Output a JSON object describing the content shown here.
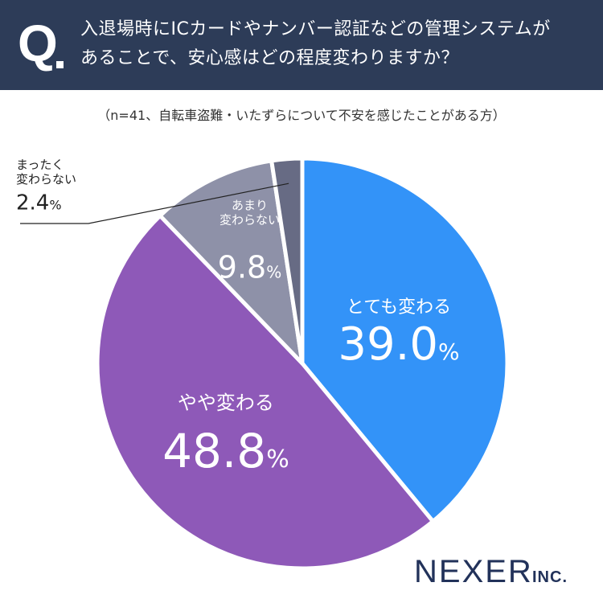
{
  "header": {
    "q_mark": "Q",
    "question_line1": "入退場時にICカードやナンバー認証などの管理システムが",
    "question_line2": "あることで、安心感はどの程度変わりますか？"
  },
  "subtitle": "（n=41、自転車盗難・いたずらについて不安を感じたことがある方）",
  "chart_data": {
    "type": "pie",
    "title": "入退場時にICカードやナンバー認証などの管理システムがあることで、安心感はどの程度変わりますか？",
    "sample_note": "n=41",
    "unit": "%",
    "slices": [
      {
        "label": "とても変わる",
        "label_lines": [
          "とても変わる"
        ],
        "value": 39.0,
        "value_text": "39.0",
        "color": "#3393f8"
      },
      {
        "label": "やや変わる",
        "label_lines": [
          "やや変わる"
        ],
        "value": 48.8,
        "value_text": "48.8",
        "color": "#8e59b8"
      },
      {
        "label": "あまり変わらない",
        "label_lines": [
          "あまり",
          "変わらない"
        ],
        "value": 9.8,
        "value_text": "9.8",
        "color": "#8e91a8"
      },
      {
        "label": "まったく変わらない",
        "label_lines": [
          "まったく",
          "変わらない"
        ],
        "value": 2.4,
        "value_text": "2.4",
        "color": "#676b84"
      }
    ]
  },
  "brand": {
    "name": "NEXER",
    "suffix": "INC."
  }
}
